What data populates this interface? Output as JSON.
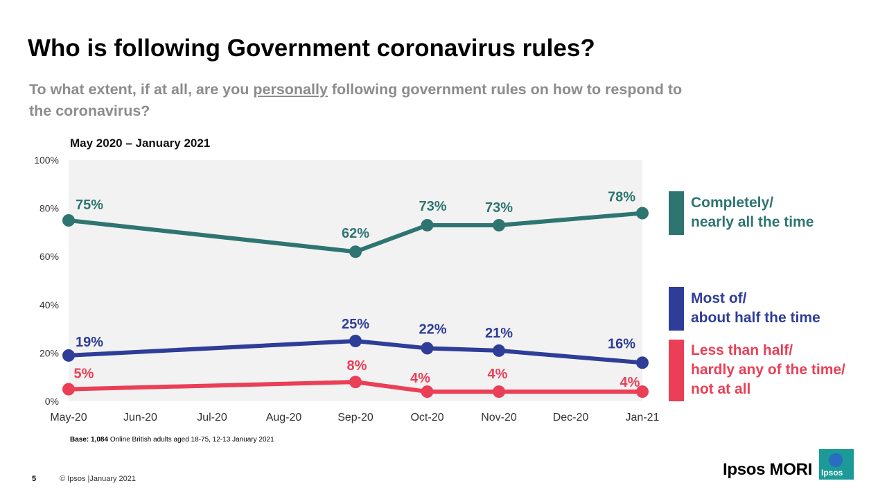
{
  "title": "Who is following Government coronavirus rules?",
  "question": {
    "before": "To what extent, if at all, are you ",
    "underlined": "personally",
    "after": " following government rules on how to respond to the coronavirus?"
  },
  "period": "May 2020 – January 2021",
  "chart_data": {
    "type": "line",
    "x": [
      "May-20",
      "Jun-20",
      "Jul-20",
      "Aug-20",
      "Sep-20",
      "Oct-20",
      "Nov-20",
      "Dec-20",
      "Jan-21"
    ],
    "ylim": [
      0,
      100
    ],
    "yticks": [
      "0%",
      "20%",
      "40%",
      "60%",
      "80%",
      "100%"
    ],
    "grid": false,
    "legend_position": "right",
    "series": [
      {
        "name": "Completely/ nearly all the time",
        "color": "#2e7571",
        "points": [
          {
            "x": "May-20",
            "y": 75,
            "label": "75%"
          },
          {
            "x": "Sep-20",
            "y": 62,
            "label": "62%"
          },
          {
            "x": "Oct-20",
            "y": 73,
            "label": "73%"
          },
          {
            "x": "Nov-20",
            "y": 73,
            "label": "73%"
          },
          {
            "x": "Jan-21",
            "y": 78,
            "label": "78%"
          }
        ]
      },
      {
        "name": "Most of/ about half the time",
        "color": "#2e3d97",
        "points": [
          {
            "x": "May-20",
            "y": 19,
            "label": "19%"
          },
          {
            "x": "Sep-20",
            "y": 25,
            "label": "25%"
          },
          {
            "x": "Oct-20",
            "y": 22,
            "label": "22%"
          },
          {
            "x": "Nov-20",
            "y": 21,
            "label": "21%"
          },
          {
            "x": "Jan-21",
            "y": 16,
            "label": "16%"
          }
        ]
      },
      {
        "name": "Less than half/ hardly any of the time/ not at all",
        "color": "#ea3f56",
        "points": [
          {
            "x": "May-20",
            "y": 5,
            "label": "5%"
          },
          {
            "x": "Sep-20",
            "y": 8,
            "label": "8%"
          },
          {
            "x": "Oct-20",
            "y": 4,
            "label": "4%"
          },
          {
            "x": "Nov-20",
            "y": 4,
            "label": "4%"
          },
          {
            "x": "Jan-21",
            "y": 4,
            "label": "4%"
          }
        ]
      }
    ]
  },
  "legend": [
    {
      "line1": "Completely/",
      "line2": "nearly all the time",
      "line3": "",
      "color": "#2e7571"
    },
    {
      "line1": "Most of/",
      "line2": "about half the time",
      "line3": "",
      "color": "#2e3d97"
    },
    {
      "line1": "Less than half/",
      "line2": "hardly any of the time/",
      "line3": "not at all",
      "color": "#ea3f56"
    }
  ],
  "base": {
    "label": "Base:",
    "count": "1,084",
    "text": "Online British adults aged 18-75, 12-13 January 2021"
  },
  "footer": {
    "page_number": "5",
    "copyright": "© Ipsos |January 2021"
  },
  "brand": {
    "name": "Ipsos MORI",
    "logo_text": "Ipsos",
    "logo_color": "#1b9a98"
  }
}
